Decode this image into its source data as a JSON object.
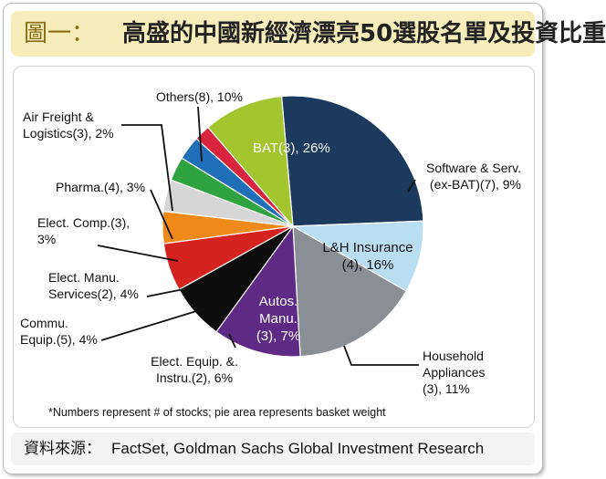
{
  "header": {
    "label": "圖一：",
    "title": "高盛的中國新經濟漂亮50選股名單及投資比重"
  },
  "chart_data": {
    "type": "pie",
    "slices": [
      {
        "label_lines": [
          "BAT(3), 26%"
        ],
        "value": 26,
        "color": "#1b3a5e",
        "text_color": "#ffffff"
      },
      {
        "label_lines": [
          "Software & Serv.",
          "(ex-BAT)(7), 9%"
        ],
        "value": 9,
        "color": "#b9def2",
        "text_color": "#111111"
      },
      {
        "label_lines": [
          "L&H Insurance",
          "(4), 16%"
        ],
        "value": 16,
        "color": "#8a8f96",
        "text_color": "#111111"
      },
      {
        "label_lines": [
          "Household",
          "Appliances",
          "(3), 11%"
        ],
        "value": 11,
        "color": "#5e2a86",
        "text_color": "#111111"
      },
      {
        "label_lines": [
          "Autos.",
          "Manu.",
          "(3), 7%"
        ],
        "value": 7,
        "color": "#0d0d0d",
        "text_color": "#ffffff"
      },
      {
        "label_lines": [
          "Elect. Equip. &.",
          "Instru.(2), 6%"
        ],
        "value": 6,
        "color": "#d5231f",
        "text_color": "#111111"
      },
      {
        "label_lines": [
          "Commu.",
          "Equip.(5), 4%"
        ],
        "value": 4,
        "color": "#ef8a1a",
        "text_color": "#111111"
      },
      {
        "label_lines": [
          "Elect. Manu.",
          "Services(2), 4%"
        ],
        "value": 4,
        "color": "#d6d6d6",
        "text_color": "#111111"
      },
      {
        "label_lines": [
          "Elect. Comp.(3),",
          "3%"
        ],
        "value": 3,
        "color": "#2fa33f",
        "text_color": "#111111"
      },
      {
        "label_lines": [
          "Pharma.(4), 3%"
        ],
        "value": 3,
        "color": "#1f6fb8",
        "text_color": "#111111"
      },
      {
        "label_lines": [
          "Air Freight &",
          "Logistics(3), 2%"
        ],
        "value": 2,
        "color": "#d8243c",
        "text_color": "#111111"
      },
      {
        "label_lines": [
          "Others(8), 10%"
        ],
        "value": 10,
        "color": "#a3c52e",
        "text_color": "#111111"
      }
    ],
    "footnote": "*Numbers represent # of stocks; pie area represents basket weight"
  },
  "source": {
    "label": "資料來源：",
    "text": "FactSet, Goldman Sachs Global Investment Research"
  }
}
